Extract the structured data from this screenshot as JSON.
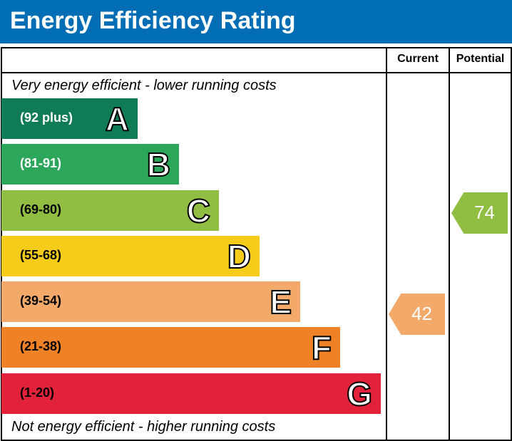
{
  "title": "Energy Efficiency Rating",
  "chart_data": {
    "type": "bar",
    "title": "Energy Efficiency Rating",
    "columns": [
      "Current",
      "Potential"
    ],
    "top_caption": "Very energy efficient - lower running costs",
    "bottom_caption": "Not energy efficient - higher running costs",
    "bands": [
      {
        "letter": "A",
        "range": "(92 plus)",
        "min": 92,
        "max": 100,
        "color": "#107c56",
        "text_color": "#ffffff"
      },
      {
        "letter": "B",
        "range": "(81-91)",
        "min": 81,
        "max": 91,
        "color": "#2ca65a",
        "text_color": "#ffffff"
      },
      {
        "letter": "C",
        "range": "(69-80)",
        "min": 69,
        "max": 80,
        "color": "#8fbe43",
        "text_color": "#000000"
      },
      {
        "letter": "D",
        "range": "(55-68)",
        "min": 55,
        "max": 68,
        "color": "#f5cc1a",
        "text_color": "#000000"
      },
      {
        "letter": "E",
        "range": "(39-54)",
        "min": 39,
        "max": 54,
        "color": "#f2a96a",
        "text_color": "#000000"
      },
      {
        "letter": "F",
        "range": "(21-38)",
        "min": 21,
        "max": 38,
        "color": "#ef8126",
        "text_color": "#000000"
      },
      {
        "letter": "G",
        "range": "(1-20)",
        "min": 1,
        "max": 20,
        "color": "#e2213b",
        "text_color": "#000000"
      }
    ],
    "current": {
      "value": 42,
      "band": "E",
      "color": "#f2a96a"
    },
    "potential": {
      "value": 74,
      "band": "C",
      "color": "#8fbe43"
    }
  }
}
